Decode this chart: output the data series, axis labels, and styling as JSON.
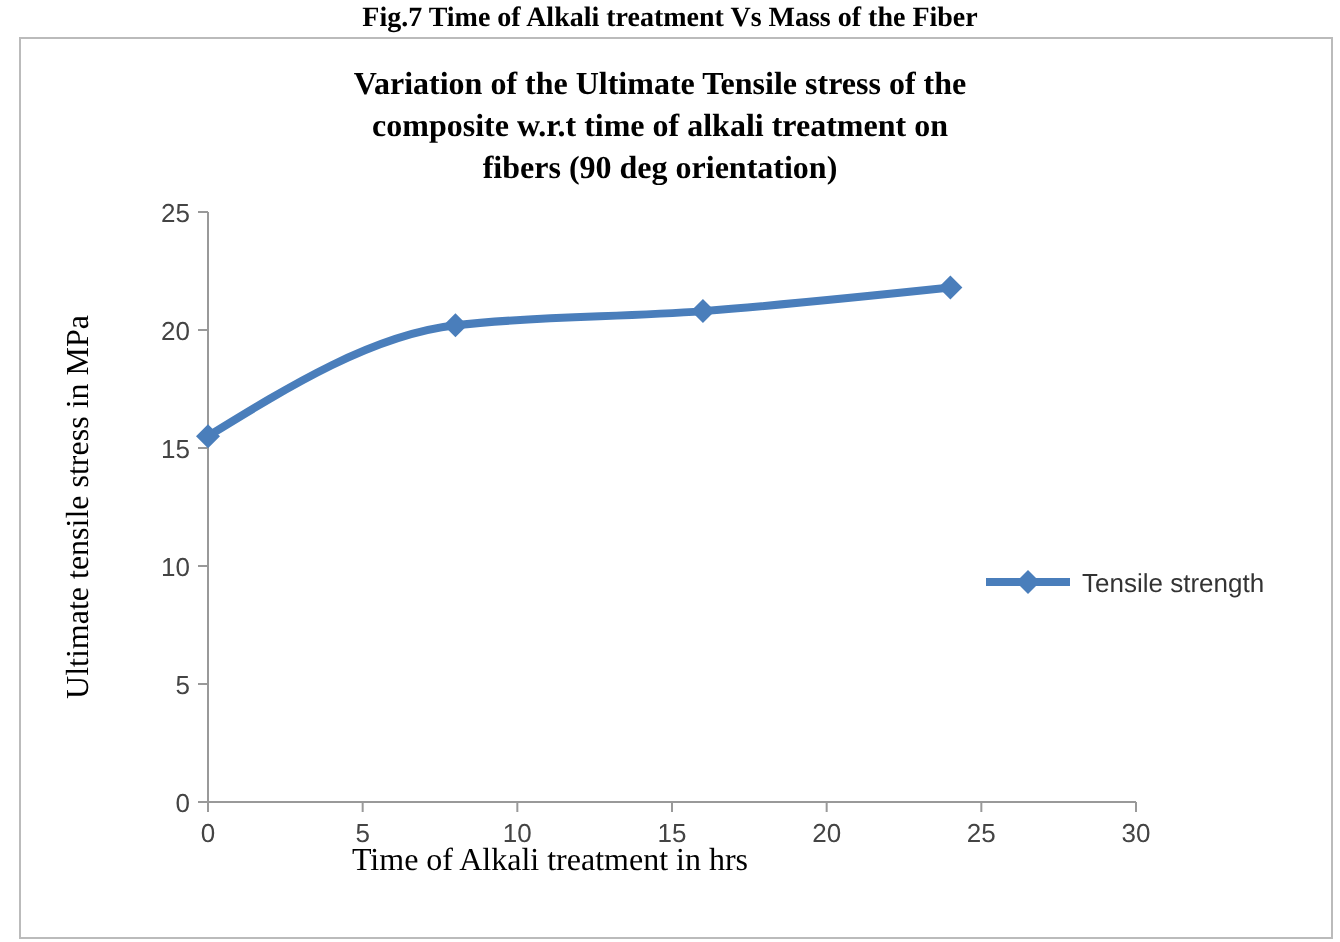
{
  "chart_data": {
    "type": "line",
    "title": "Variation of the Ultimate Tensile stress of the composite w.r.t time of alkali treatment on fibers (90 deg orientation)",
    "xlabel": "Time of Alkali treatment in hrs",
    "ylabel": "Ultimate tensile stress in MPa",
    "annotations": [
      "Fig.7 Time of Alkali treatment Vs Mass of the Fiber"
    ],
    "x": [
      0,
      8,
      16,
      24
    ],
    "series": [
      {
        "name": "Tensile strength",
        "color": "#4a7ebb",
        "values": [
          15.5,
          20.2,
          20.8,
          21.8
        ]
      }
    ],
    "xlim": [
      0,
      30
    ],
    "xticks": [
      0,
      5,
      10,
      15,
      20,
      25,
      30
    ],
    "ylim": [
      0,
      25
    ],
    "yticks": [
      0,
      5,
      10,
      15,
      20,
      25
    ],
    "legend": "right",
    "marker": "diamond",
    "line_style": "solid"
  }
}
